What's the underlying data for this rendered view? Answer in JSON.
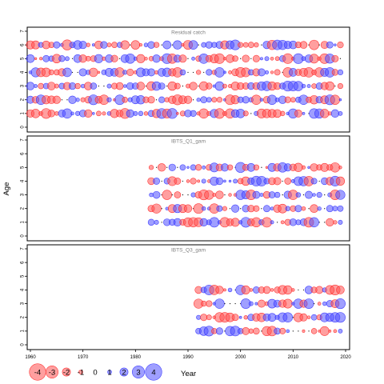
{
  "chart_data": {
    "type": "scatter",
    "subtype": "bubble",
    "xlabel": "Year",
    "ylabel": "Age",
    "xlim": [
      1960,
      2020
    ],
    "ylim": [
      0,
      7
    ],
    "x_ticks": [
      1960,
      1970,
      1980,
      1990,
      2000,
      2010,
      2020
    ],
    "y_ticks": [
      0,
      1,
      2,
      3,
      4,
      5,
      6,
      7
    ],
    "colors": {
      "positive": "#5050ff",
      "negative": "#ff5050"
    },
    "grid": false,
    "panels": [
      {
        "title": "Residual catch",
        "years": [
          1960,
          2019
        ],
        "ages": [
          1,
          2,
          3,
          4,
          5,
          6
        ]
      },
      {
        "title": "IBTS_Q1_gam",
        "years": [
          1983,
          2019
        ],
        "ages": [
          1,
          2,
          3,
          4,
          5
        ]
      },
      {
        "title": "IBTS_Q3_gam",
        "years": [
          1992,
          2019
        ],
        "ages": [
          1,
          2,
          3,
          4
        ]
      }
    ],
    "legend": {
      "title": "",
      "placement": "bottom-left",
      "values": [
        -4,
        -3,
        -2,
        -1,
        0,
        1,
        2,
        3,
        4
      ],
      "labels": [
        "-4",
        "-3",
        "-2",
        "-1",
        "0",
        "1",
        "2",
        "3",
        "4"
      ]
    }
  }
}
